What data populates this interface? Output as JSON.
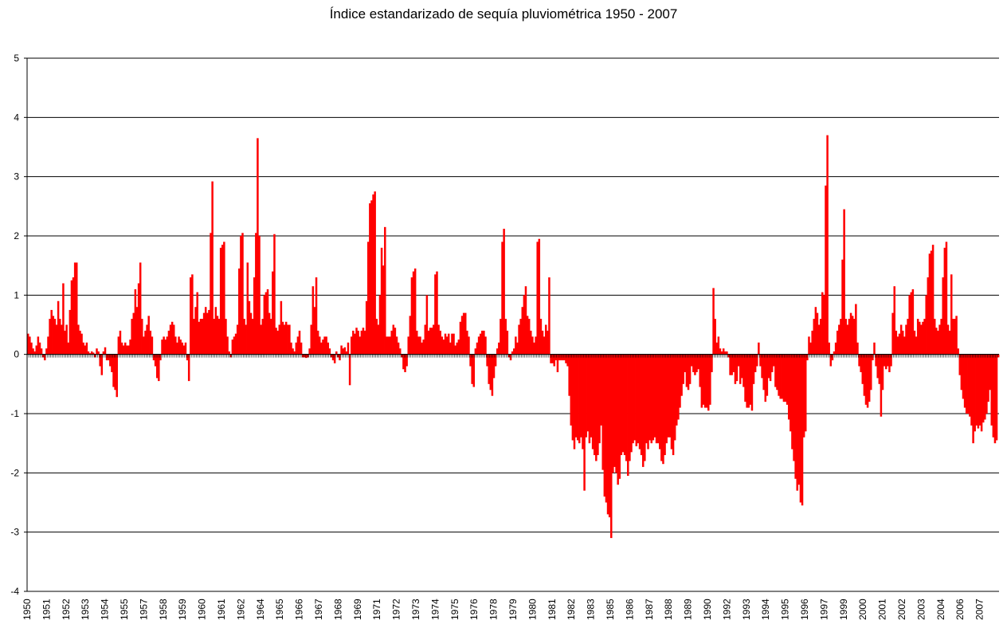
{
  "chart_data": {
    "type": "bar",
    "title": "Índice estandarizado de sequía pluviométrica 1950 - 2007",
    "xlabel": "",
    "ylabel": "",
    "ylim": [
      -4,
      5
    ],
    "yticks": [
      "5",
      "4",
      "3",
      "2",
      "1",
      "0",
      "-1",
      "-2",
      "-3",
      "-4"
    ],
    "ytick_values": [
      5,
      4,
      3,
      2,
      1,
      0,
      -1,
      -2,
      -3,
      -4
    ],
    "grid": "horizontal",
    "legend": "none",
    "bar_color": "#ff0000",
    "x_labels": [
      "1950",
      "1951",
      "1952",
      "1953",
      "1954",
      "1955",
      "1957",
      "1958",
      "1959",
      "1960",
      "1961",
      "1962",
      "1964",
      "1965",
      "1966",
      "1967",
      "1968",
      "1969",
      "1971",
      "1972",
      "1973",
      "1974",
      "1975",
      "1976",
      "1978",
      "1979",
      "1980",
      "1981",
      "1982",
      "1983",
      "1985",
      "1986",
      "1987",
      "1988",
      "1989",
      "1990",
      "1992",
      "1993",
      "1994",
      "1995",
      "1996",
      "1997",
      "1999",
      "2000",
      "2001",
      "2002",
      "2003",
      "2004",
      "2006",
      "2007"
    ],
    "series": [
      {
        "points_per_year": 12,
        "start_year": 1950,
        "values": [
          0.35,
          0.3,
          0.2,
          0.1,
          0.05,
          0.15,
          0.3,
          0.2,
          0.1,
          -0.05,
          -0.1,
          0.1,
          0.3,
          0.6,
          0.75,
          0.65,
          0.6,
          0.5,
          0.9,
          0.6,
          0.5,
          1.2,
          0.4,
          0.5,
          0.2,
          0.75,
          1.25,
          1.3,
          1.55,
          1.55,
          0.5,
          0.4,
          0.35,
          0.2,
          0.15,
          0.2,
          0.05,
          0.02,
          0.05,
          0.03,
          -0.05,
          0.1,
          0.05,
          -0.2,
          -0.35,
          0.05,
          0.12,
          -0.1,
          -0.1,
          -0.2,
          -0.3,
          -0.55,
          -0.6,
          -0.72,
          0.3,
          0.4,
          0.2,
          0.15,
          0.2,
          0.15,
          0.15,
          0.25,
          0.6,
          0.7,
          1.1,
          0.8,
          1.2,
          1.55,
          0.6,
          0.3,
          0.4,
          0.5,
          0.65,
          0.4,
          0.3,
          -0.1,
          -0.2,
          -0.4,
          -0.45,
          -0.1,
          0.25,
          0.3,
          0.25,
          0.3,
          0.4,
          0.5,
          0.55,
          0.5,
          0.3,
          0.2,
          0.3,
          0.25,
          0.2,
          0.15,
          0.2,
          -0.1,
          -0.45,
          1.3,
          1.35,
          0.6,
          0.8,
          1.05,
          0.55,
          0.6,
          0.6,
          0.7,
          0.8,
          0.7,
          0.75,
          2.05,
          2.92,
          0.6,
          0.8,
          0.65,
          0.6,
          1.8,
          1.85,
          1.9,
          0.6,
          0.3,
          0.05,
          -0.05,
          0.25,
          0.3,
          0.35,
          0.5,
          1.45,
          2.0,
          2.05,
          0.6,
          0.5,
          1.55,
          0.9,
          0.7,
          0.6,
          1.3,
          2.05,
          3.65,
          2.0,
          0.5,
          0.6,
          1.0,
          1.05,
          1.1,
          0.7,
          0.6,
          1.4,
          2.03,
          0.45,
          0.4,
          0.5,
          0.9,
          0.55,
          0.5,
          0.55,
          0.5,
          0.5,
          0.2,
          0.1,
          0.05,
          0.2,
          0.3,
          0.4,
          0.2,
          -0.05,
          -0.05,
          -0.06,
          -0.05,
          0.1,
          0.5,
          1.15,
          0.8,
          1.3,
          0.4,
          0.3,
          0.2,
          0.25,
          0.3,
          0.3,
          0.2,
          0.1,
          -0.05,
          -0.1,
          -0.15,
          0.05,
          -0.05,
          -0.1,
          0.15,
          0.1,
          0.12,
          0.05,
          0.2,
          -0.52,
          0.3,
          0.4,
          0.35,
          0.45,
          0.4,
          0.3,
          0.4,
          0.45,
          0.4,
          0.9,
          1.9,
          2.55,
          2.6,
          2.7,
          2.75,
          0.6,
          0.5,
          1.0,
          1.8,
          1.5,
          2.15,
          0.3,
          0.3,
          0.3,
          0.4,
          0.5,
          0.45,
          0.3,
          0.2,
          0.1,
          -0.05,
          -0.25,
          -0.3,
          -0.2,
          0.3,
          0.65,
          1.3,
          1.4,
          1.45,
          0.4,
          0.3,
          0.3,
          0.2,
          0.25,
          0.5,
          1.0,
          0.4,
          0.45,
          0.45,
          0.5,
          1.35,
          1.4,
          0.5,
          0.4,
          0.3,
          0.25,
          0.35,
          0.3,
          0.35,
          0.2,
          0.35,
          0.35,
          0.15,
          0.2,
          0.25,
          0.55,
          0.65,
          0.7,
          0.7,
          0.4,
          0.3,
          -0.2,
          -0.5,
          -0.55,
          0.1,
          0.2,
          0.3,
          0.35,
          0.4,
          0.4,
          0.3,
          -0.2,
          -0.5,
          -0.6,
          -0.7,
          -0.4,
          -0.2,
          0.1,
          0.2,
          0.6,
          1.9,
          2.12,
          0.6,
          0.4,
          -0.05,
          -0.1,
          0.05,
          0.1,
          0.3,
          0.2,
          0.5,
          0.6,
          0.8,
          1.0,
          1.15,
          0.65,
          0.6,
          0.4,
          0.3,
          0.2,
          0.3,
          1.9,
          1.95,
          0.6,
          0.4,
          0.3,
          0.5,
          0.4,
          1.3,
          -0.15,
          -0.15,
          -0.2,
          -0.1,
          -0.3,
          -0.1,
          -0.1,
          -0.1,
          -0.1,
          -0.15,
          -0.2,
          -0.7,
          -1.2,
          -1.45,
          -1.6,
          -1.4,
          -1.45,
          -1.5,
          -1.4,
          -1.6,
          -2.3,
          -1.4,
          -1.3,
          -1.5,
          -1.4,
          -1.6,
          -1.7,
          -1.8,
          -1.7,
          -1.5,
          -1.2,
          -1.95,
          -2.4,
          -2.5,
          -2.7,
          -2.75,
          -3.1,
          -2.0,
          -1.9,
          -2.0,
          -2.2,
          -2.1,
          -1.7,
          -1.65,
          -1.7,
          -1.8,
          -2.05,
          -1.8,
          -1.65,
          -1.5,
          -1.45,
          -1.55,
          -1.5,
          -1.6,
          -1.7,
          -1.9,
          -1.8,
          -1.5,
          -1.6,
          -1.45,
          -1.5,
          -1.45,
          -1.4,
          -1.5,
          -1.5,
          -1.6,
          -1.8,
          -1.85,
          -1.7,
          -1.5,
          -1.4,
          -1.4,
          -1.6,
          -1.7,
          -1.45,
          -1.2,
          -1.1,
          -0.9,
          -0.7,
          -0.5,
          -0.3,
          -0.55,
          -0.6,
          -0.5,
          -0.2,
          -0.3,
          -0.35,
          -0.3,
          -0.25,
          -0.55,
          -0.9,
          -0.85,
          -0.9,
          -0.9,
          -0.95,
          -0.85,
          -0.3,
          1.12,
          0.6,
          0.2,
          0.3,
          0.1,
          0.05,
          0.1,
          0.05,
          0.05,
          -0.05,
          -0.35,
          -0.35,
          -0.3,
          -0.5,
          -0.45,
          -0.2,
          -0.5,
          -0.4,
          -0.55,
          -0.8,
          -0.9,
          -0.9,
          -0.85,
          -0.95,
          -0.5,
          -0.3,
          -0.2,
          0.2,
          -0.2,
          -0.4,
          -0.6,
          -0.8,
          -0.7,
          -0.4,
          -0.45,
          -0.3,
          -0.2,
          -0.55,
          -0.6,
          -0.7,
          -0.75,
          -0.75,
          -0.8,
          -0.8,
          -0.85,
          -1.1,
          -1.3,
          -1.6,
          -1.8,
          -2.1,
          -2.3,
          -2.2,
          -2.5,
          -2.55,
          -1.4,
          -1.3,
          -0.1,
          0.3,
          0.2,
          0.4,
          0.6,
          0.8,
          0.7,
          0.5,
          0.6,
          1.05,
          1.0,
          2.85,
          3.7,
          0.2,
          -0.2,
          -0.1,
          0.05,
          0.2,
          0.4,
          0.5,
          0.6,
          1.6,
          2.45,
          0.6,
          0.5,
          0.6,
          0.7,
          0.65,
          0.6,
          0.85,
          0.2,
          -0.2,
          -0.3,
          -0.5,
          -0.7,
          -0.85,
          -0.9,
          -0.8,
          -0.6,
          -0.1,
          0.2,
          -0.2,
          -0.4,
          -0.5,
          -1.05,
          -0.6,
          -0.2,
          -0.25,
          -0.2,
          -0.3,
          -0.2,
          0.7,
          1.15,
          0.4,
          0.3,
          0.35,
          0.5,
          0.4,
          0.3,
          0.5,
          0.6,
          1.0,
          1.05,
          1.1,
          0.4,
          0.3,
          0.6,
          0.55,
          0.5,
          0.55,
          0.6,
          1.0,
          1.3,
          1.7,
          1.75,
          1.85,
          0.6,
          0.45,
          0.4,
          0.5,
          0.6,
          1.3,
          1.8,
          1.9,
          0.5,
          0.4,
          1.35,
          0.6,
          0.6,
          0.65,
          0.1,
          -0.35,
          -0.6,
          -0.75,
          -0.9,
          -1.0,
          -1.0,
          -1.05,
          -1.2,
          -1.5,
          -1.3,
          -1.2,
          -1.25,
          -1.2,
          -1.3,
          -1.15,
          -1.1,
          -1.0,
          -0.8,
          -0.6,
          -1.2,
          -1.4,
          -1.5,
          -1.45,
          -0.05
        ]
      }
    ]
  }
}
